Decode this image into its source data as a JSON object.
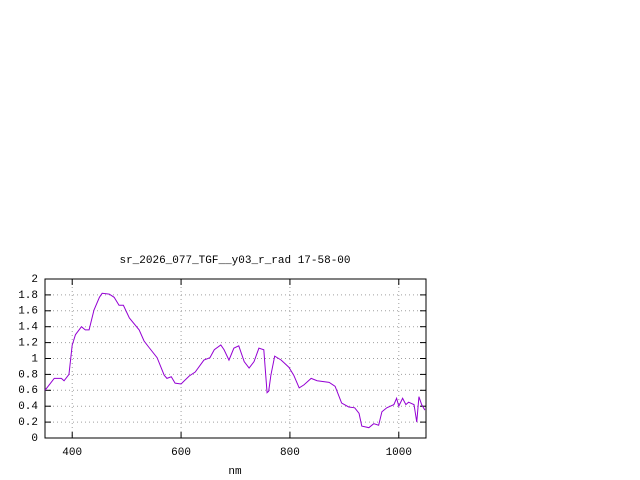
{
  "chart_data": {
    "type": "line",
    "title": "sr_2026_077_TGF__y03_r_rad 17-58-00",
    "x_label": "nm",
    "x": [
      350,
      367,
      380,
      385,
      394,
      400,
      406,
      417,
      424,
      431,
      440,
      450,
      455,
      468,
      477,
      486,
      494,
      505,
      523,
      532,
      541,
      556,
      569,
      574,
      582,
      589,
      600,
      615,
      626,
      642,
      653,
      661,
      673,
      679,
      688,
      697,
      706,
      716,
      725,
      734,
      743,
      752,
      758,
      761,
      765,
      772,
      784,
      798,
      807,
      817,
      826,
      839,
      850,
      872,
      883,
      895,
      908,
      919,
      927,
      932,
      945,
      954,
      963,
      969,
      978,
      991,
      996,
      1000,
      1007,
      1013,
      1018,
      1028,
      1033,
      1037,
      1042,
      1048
    ],
    "series": [
      {
        "color": "#9400d3",
        "values": [
          0.6,
          0.75,
          0.75,
          0.72,
          0.8,
          1.17,
          1.3,
          1.4,
          1.36,
          1.36,
          1.61,
          1.77,
          1.82,
          1.81,
          1.77,
          1.67,
          1.67,
          1.51,
          1.36,
          1.22,
          1.14,
          1.01,
          0.79,
          0.75,
          0.77,
          0.69,
          0.68,
          0.78,
          0.83,
          0.98,
          1.01,
          1.11,
          1.17,
          1.11,
          0.98,
          1.13,
          1.16,
          0.96,
          0.88,
          0.96,
          1.13,
          1.11,
          0.57,
          0.59,
          0.79,
          1.03,
          0.98,
          0.89,
          0.79,
          0.63,
          0.67,
          0.75,
          0.72,
          0.7,
          0.65,
          0.44,
          0.39,
          0.38,
          0.31,
          0.15,
          0.13,
          0.18,
          0.16,
          0.33,
          0.38,
          0.42,
          0.5,
          0.4,
          0.5,
          0.42,
          0.45,
          0.42,
          0.2,
          0.52,
          0.42,
          0.35
        ]
      }
    ],
    "xlim": [
      350,
      1050
    ],
    "xticks": [
      400,
      600,
      800,
      1000
    ],
    "ylim": [
      0,
      2
    ],
    "yticks": [
      0,
      0.2,
      0.4,
      0.6,
      0.8,
      1,
      1.2,
      1.4,
      1.6,
      1.8,
      2
    ],
    "grid": true
  }
}
